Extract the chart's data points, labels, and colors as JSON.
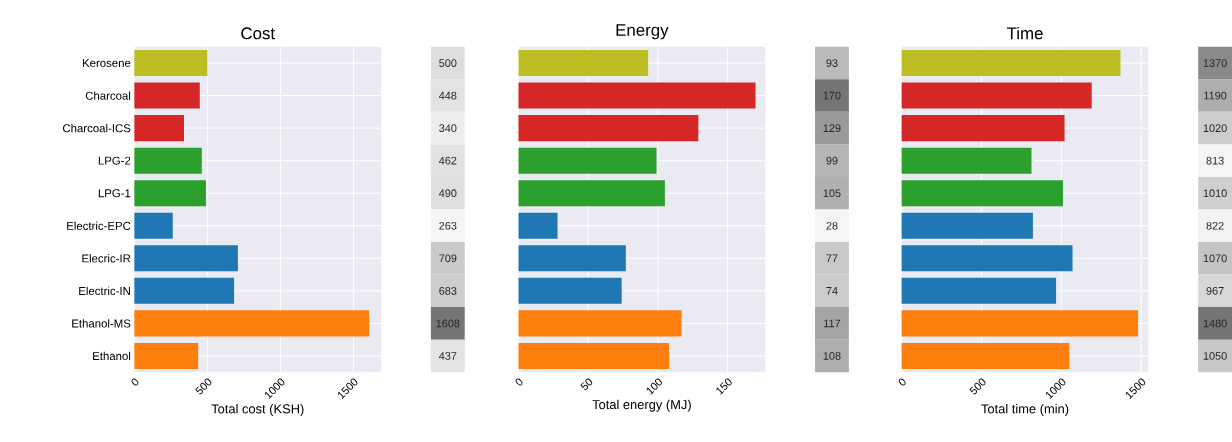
{
  "chart_data": [
    {
      "type": "bar",
      "orientation": "horizontal",
      "title": "Cost",
      "xlabel": "Total cost (KSH)",
      "categories": [
        "Kerosene",
        "Charcoal",
        "Charcoal-ICS",
        "LPG-2",
        "LPG-1",
        "Electric-EPC",
        "Elecric-IR",
        "Electric-IN",
        "Ethanol-MS",
        "Ethanol"
      ],
      "values": [
        500,
        448,
        340,
        462,
        490,
        263,
        709,
        683,
        1608,
        437
      ],
      "colors": [
        "#bcbd22",
        "#d62728",
        "#d62728",
        "#2ca02c",
        "#2ca02c",
        "#1f77b4",
        "#1f77b4",
        "#1f77b4",
        "#ff7f0e",
        "#ff7f0e"
      ],
      "xlim": [
        0,
        1690
      ],
      "xticks": [
        0,
        500,
        1000,
        1500
      ],
      "grid": true,
      "data_labels": true
    },
    {
      "type": "bar",
      "orientation": "horizontal",
      "title": "Energy",
      "xlabel": "Total energy (MJ)",
      "categories": [
        null,
        null,
        null,
        null,
        null,
        null,
        null,
        null,
        null,
        null
      ],
      "values": [
        93,
        170,
        129,
        99,
        105,
        28,
        77,
        74,
        117,
        108
      ],
      "colors": [
        "#bcbd22",
        "#d62728",
        "#d62728",
        "#2ca02c",
        "#2ca02c",
        "#1f77b4",
        "#1f77b4",
        "#1f77b4",
        "#ff7f0e",
        "#ff7f0e"
      ],
      "xlim": [
        0,
        177
      ],
      "xticks": [
        0,
        50,
        100,
        150
      ],
      "grid": true,
      "data_labels": true
    },
    {
      "type": "bar",
      "orientation": "horizontal",
      "title": "Time",
      "xlabel": "Total time (min)",
      "categories": [
        null,
        null,
        null,
        null,
        null,
        null,
        null,
        null,
        null,
        null
      ],
      "values": [
        1370,
        1190,
        1020,
        813,
        1010,
        822,
        1070,
        967,
        1480,
        1050
      ],
      "colors": [
        "#bcbd22",
        "#d62728",
        "#d62728",
        "#2ca02c",
        "#2ca02c",
        "#1f77b4",
        "#1f77b4",
        "#1f77b4",
        "#ff7f0e",
        "#ff7f0e"
      ],
      "xlim": [
        0,
        1545
      ],
      "xticks": [
        0,
        500,
        1000,
        1500
      ],
      "grid": true,
      "data_labels": true
    }
  ]
}
